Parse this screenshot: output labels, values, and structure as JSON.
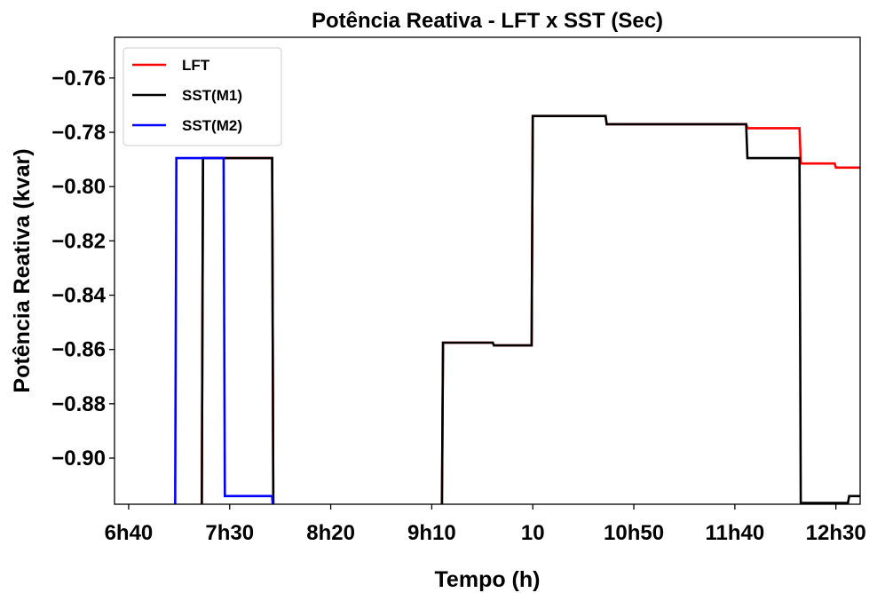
{
  "chart_data": {
    "type": "line",
    "title": "Potência Reativa - LFT x SST (Sec)",
    "xlabel": "Tempo (h)",
    "ylabel": "Potência Reativa (kvar)",
    "xlim": [
      6.55,
      12.7
    ],
    "ylim": [
      -0.917,
      -0.745
    ],
    "xticks": [
      {
        "value": 6.6667,
        "label": "6h40"
      },
      {
        "value": 7.5,
        "label": "7h30"
      },
      {
        "value": 8.3333,
        "label": "8h20"
      },
      {
        "value": 9.1667,
        "label": "9h10"
      },
      {
        "value": 10.0,
        "label": "10"
      },
      {
        "value": 10.8333,
        "label": "10h50"
      },
      {
        "value": 11.6667,
        "label": "11h40"
      },
      {
        "value": 12.5,
        "label": "12h30"
      }
    ],
    "yticks": [
      -0.76,
      -0.78,
      -0.8,
      -0.82,
      -0.84,
      -0.86,
      -0.88,
      -0.9
    ],
    "ytick_labels": [
      "−0.76",
      "−0.78",
      "−0.80",
      "−0.82",
      "−0.84",
      "−0.86",
      "−0.88",
      "−0.90"
    ],
    "legend_position": "upper-left",
    "series": [
      {
        "name": "LFT",
        "color": "#ff0000",
        "x": [
          7.27,
          7.28,
          7.85,
          7.86,
          9.25,
          9.26,
          9.67,
          9.68,
          9.99,
          10.0,
          10.6,
          10.61,
          11.76,
          11.77,
          12.2,
          12.21,
          12.49,
          12.5,
          12.7
        ],
        "y": [
          -0.92,
          -0.7895,
          -0.7895,
          -0.92,
          -0.92,
          -0.8575,
          -0.8575,
          -0.8585,
          -0.8585,
          -0.774,
          -0.774,
          -0.777,
          -0.777,
          -0.7785,
          -0.7785,
          -0.7915,
          -0.7915,
          -0.793,
          -0.793
        ]
      },
      {
        "name": "SST(M1)",
        "color": "#000000",
        "x": [
          7.27,
          7.28,
          7.85,
          7.86,
          9.25,
          9.26,
          9.67,
          9.68,
          9.99,
          10.0,
          10.28,
          10.29,
          10.6,
          10.61,
          11.76,
          11.77,
          12.2,
          12.21,
          12.6,
          12.61,
          12.7
        ],
        "y": [
          -0.92,
          -0.7895,
          -0.7895,
          -0.92,
          -0.92,
          -0.8575,
          -0.8575,
          -0.8585,
          -0.8585,
          -0.774,
          -0.774,
          -0.774,
          -0.774,
          -0.777,
          -0.777,
          -0.7895,
          -0.7895,
          -0.9165,
          -0.9165,
          -0.914,
          -0.914
        ]
      },
      {
        "name": "SST(M2)",
        "color": "#0000ff",
        "x": [
          7.05,
          7.06,
          7.45,
          7.46,
          7.85,
          7.86
        ],
        "y": [
          -0.92,
          -0.7895,
          -0.7895,
          -0.914,
          -0.914,
          -0.92
        ]
      }
    ]
  }
}
